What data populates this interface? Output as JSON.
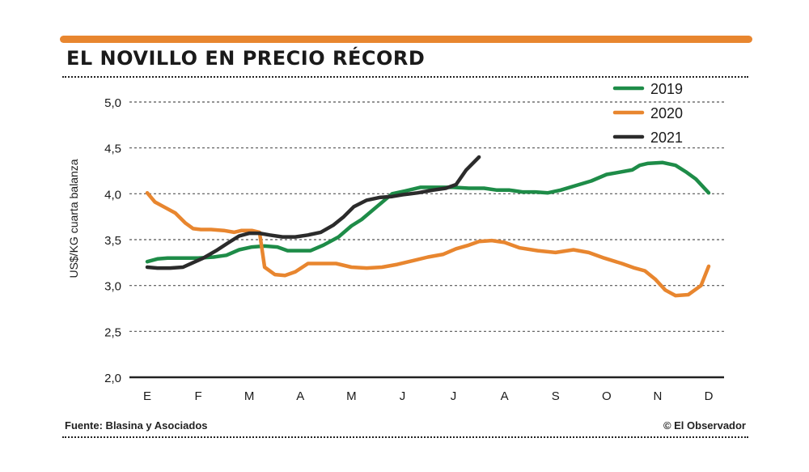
{
  "header": {
    "title": "EL NOVILLO EN PRECIO RÉCORD"
  },
  "footer": {
    "source": "Fuente: Blasina y Asociados",
    "credit": "© El Observador"
  },
  "colors": {
    "accent": "#e8862f",
    "series_2019": "#1e8c48",
    "series_2020": "#e8862f",
    "series_2021": "#2b2b2b"
  },
  "chart_data": {
    "type": "line",
    "title": "EL NOVILLO EN PRECIO RÉCORD",
    "xlabel": "",
    "ylabel": "US$/KG cuarta balanza",
    "ylim": [
      2.0,
      5.0
    ],
    "xlim": [
      0,
      11
    ],
    "x_ticks": [
      0,
      1,
      2,
      3,
      4,
      5,
      6,
      7,
      8,
      9,
      10,
      11
    ],
    "x_tick_labels": [
      "E",
      "F",
      "M",
      "A",
      "M",
      "J",
      "J",
      "A",
      "S",
      "O",
      "N",
      "D"
    ],
    "y_ticks": [
      2.0,
      2.5,
      3.0,
      3.5,
      4.0,
      4.5,
      5.0
    ],
    "y_tick_labels": [
      "2,0",
      "2,5",
      "3,0",
      "3,5",
      "4,0",
      "4,5",
      "5,0"
    ],
    "grid": true,
    "legend_position": "top-right",
    "series": [
      {
        "name": "2019",
        "color": "#1e8c48",
        "x": [
          0,
          0.2,
          0.4,
          0.6,
          0.8,
          1.0,
          1.3,
          1.55,
          1.8,
          2.05,
          2.3,
          2.55,
          2.75,
          3.0,
          3.2,
          3.45,
          3.75,
          4.0,
          4.2,
          4.5,
          4.8,
          5.05,
          5.35,
          5.7,
          6.0,
          6.3,
          6.6,
          6.85,
          7.1,
          7.35,
          7.6,
          7.85,
          8.1,
          8.4,
          8.7,
          9.0,
          9.2,
          9.5,
          9.65,
          9.8,
          10.1,
          10.35,
          10.55,
          10.75,
          11.0
        ],
        "values": [
          3.26,
          3.29,
          3.3,
          3.3,
          3.3,
          3.3,
          3.31,
          3.33,
          3.39,
          3.42,
          3.43,
          3.42,
          3.38,
          3.38,
          3.38,
          3.44,
          3.53,
          3.65,
          3.72,
          3.86,
          4.0,
          4.03,
          4.07,
          4.07,
          4.07,
          4.06,
          4.06,
          4.04,
          4.04,
          4.02,
          4.02,
          4.01,
          4.04,
          4.09,
          4.14,
          4.21,
          4.23,
          4.26,
          4.31,
          4.33,
          4.34,
          4.31,
          4.24,
          4.16,
          4.01
        ]
      },
      {
        "name": "2020",
        "color": "#e8862f",
        "x": [
          0,
          0.15,
          0.35,
          0.55,
          0.75,
          0.9,
          1.05,
          1.25,
          1.5,
          1.7,
          1.85,
          2.05,
          2.2,
          2.3,
          2.5,
          2.7,
          2.9,
          3.15,
          3.45,
          3.7,
          4.0,
          4.3,
          4.6,
          4.9,
          5.2,
          5.5,
          5.8,
          6.05,
          6.3,
          6.5,
          6.75,
          7.0,
          7.3,
          7.65,
          8.0,
          8.35,
          8.65,
          8.95,
          9.3,
          9.55,
          9.75,
          9.95,
          10.15,
          10.35,
          10.6,
          10.85,
          11.0
        ],
        "values": [
          4.01,
          3.91,
          3.85,
          3.79,
          3.68,
          3.62,
          3.61,
          3.61,
          3.6,
          3.58,
          3.6,
          3.6,
          3.58,
          3.2,
          3.12,
          3.11,
          3.15,
          3.24,
          3.24,
          3.24,
          3.2,
          3.19,
          3.2,
          3.23,
          3.27,
          3.31,
          3.34,
          3.4,
          3.44,
          3.48,
          3.49,
          3.47,
          3.41,
          3.38,
          3.36,
          3.39,
          3.36,
          3.3,
          3.24,
          3.19,
          3.16,
          3.07,
          2.95,
          2.89,
          2.9,
          3.0,
          3.21
        ]
      },
      {
        "name": "2021",
        "color": "#2b2b2b",
        "x": [
          0,
          0.2,
          0.45,
          0.7,
          0.9,
          1.1,
          1.35,
          1.6,
          1.8,
          2.0,
          2.2,
          2.4,
          2.65,
          2.9,
          3.15,
          3.4,
          3.65,
          3.85,
          4.05,
          4.3,
          4.55,
          4.8,
          5.0,
          5.3,
          5.6,
          5.85,
          6.05,
          6.25,
          6.5
        ],
        "values": [
          3.2,
          3.19,
          3.19,
          3.2,
          3.25,
          3.3,
          3.38,
          3.47,
          3.54,
          3.57,
          3.57,
          3.55,
          3.53,
          3.53,
          3.55,
          3.58,
          3.66,
          3.75,
          3.86,
          3.93,
          3.96,
          3.97,
          3.99,
          4.01,
          4.04,
          4.06,
          4.1,
          4.26,
          4.4
        ]
      }
    ]
  }
}
